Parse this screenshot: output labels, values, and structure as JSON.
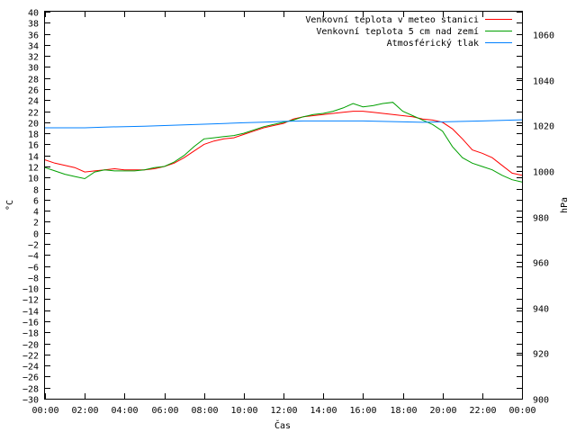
{
  "chart_data": {
    "type": "line",
    "title": "",
    "xlabel": "Čas",
    "ylabel_left": "°C",
    "ylabel_right": "hPa",
    "x_ticks": [
      "00:00",
      "02:00",
      "04:00",
      "06:00",
      "08:00",
      "10:00",
      "12:00",
      "14:00",
      "16:00",
      "18:00",
      "20:00",
      "22:00",
      "00:00"
    ],
    "x_range_hours": [
      0,
      24
    ],
    "y_left_range": [
      -30,
      40
    ],
    "y_left_step": 2,
    "y_right_range": [
      900,
      1070
    ],
    "y_right_ticks": [
      900,
      920,
      940,
      960,
      980,
      1000,
      1020,
      1040,
      1060
    ],
    "grid": false,
    "legend_position": "top-right",
    "series": [
      {
        "name": "Venkovní teplota v meteo stanici",
        "color": "#ff0000",
        "axis": "left",
        "x": [
          0,
          0.5,
          1,
          1.5,
          2,
          2.5,
          3,
          3.5,
          4,
          4.5,
          5,
          5.5,
          6,
          6.5,
          7,
          7.5,
          8,
          8.5,
          9,
          9.5,
          10,
          10.5,
          11,
          11.5,
          12,
          12.5,
          13,
          13.5,
          14,
          14.5,
          15,
          15.5,
          16,
          16.5,
          17,
          17.5,
          18,
          18.5,
          19,
          19.5,
          20,
          20.5,
          21,
          21.5,
          22,
          22.5,
          23,
          23.5,
          24
        ],
        "values": [
          13.2,
          12.6,
          12.2,
          11.8,
          11,
          11.2,
          11.4,
          11.6,
          11.4,
          11.4,
          11.4,
          11.6,
          12,
          12.6,
          13.6,
          14.8,
          16,
          16.6,
          17,
          17.2,
          17.8,
          18.4,
          19,
          19.4,
          19.8,
          20.6,
          21,
          21.2,
          21.4,
          21.6,
          21.8,
          22,
          22,
          21.8,
          21.6,
          21.4,
          21.2,
          21,
          20.6,
          20.4,
          20,
          18.8,
          17,
          15,
          14.4,
          13.6,
          12.2,
          10.8,
          10.4
        ]
      },
      {
        "name": "Venkovní teplota 5 cm nad zemí",
        "color": "#00a000",
        "axis": "left",
        "x": [
          0,
          0.5,
          1,
          1.5,
          2,
          2.5,
          3,
          3.5,
          4,
          4.5,
          5,
          5.5,
          6,
          6.5,
          7,
          7.5,
          8,
          8.5,
          9,
          9.5,
          10,
          10.5,
          11,
          11.5,
          12,
          12.5,
          13,
          13.5,
          14,
          14.5,
          15,
          15.5,
          16,
          16.5,
          17,
          17.5,
          18,
          18.5,
          19,
          19.5,
          20,
          20.5,
          21,
          21.5,
          22,
          22.5,
          23,
          23.5,
          24
        ],
        "values": [
          11.8,
          11.2,
          10.6,
          10.2,
          9.8,
          11,
          11.4,
          11.2,
          11.2,
          11.2,
          11.4,
          11.8,
          12,
          12.8,
          14,
          15.6,
          17,
          17.2,
          17.4,
          17.6,
          18,
          18.6,
          19.2,
          19.6,
          20,
          20.4,
          21,
          21.4,
          21.6,
          22,
          22.6,
          23.4,
          22.8,
          23,
          23.4,
          23.6,
          22,
          21.2,
          20.4,
          19.6,
          18.4,
          15.6,
          13.6,
          12.6,
          12,
          11.4,
          10.4,
          9.6,
          9.2
        ]
      },
      {
        "name": "Atmosférický tlak",
        "color": "#0080ff",
        "axis": "right",
        "x": [
          0,
          1,
          2,
          3,
          4,
          5,
          6,
          7,
          8,
          9,
          10,
          11,
          12,
          13,
          14,
          15,
          16,
          17,
          18,
          19,
          20,
          21,
          22,
          23,
          24
        ],
        "values": [
          1019,
          1019,
          1019,
          1019.3,
          1019.5,
          1019.7,
          1020,
          1020.3,
          1020.6,
          1020.9,
          1021.2,
          1021.5,
          1021.8,
          1022,
          1022,
          1022,
          1022,
          1021.8,
          1021.6,
          1021.4,
          1021.6,
          1021.8,
          1022,
          1022.3,
          1022.5
        ]
      }
    ]
  }
}
